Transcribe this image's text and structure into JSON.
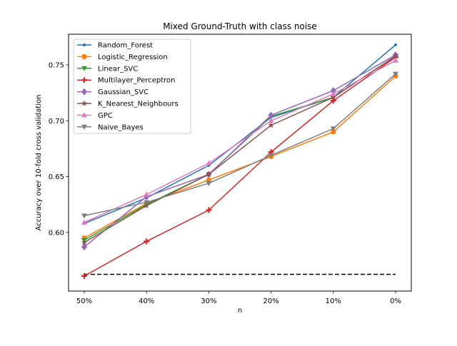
{
  "chart_data": {
    "type": "line",
    "title": "Mixed Ground-Truth with class noise",
    "xlabel": "n",
    "ylabel": "Accuracy over 10-fold cross validation",
    "categories": [
      "50%",
      "40%",
      "30%",
      "20%",
      "10%",
      "0%"
    ],
    "ylim": [
      0.5475,
      0.7775
    ],
    "yticks": [
      0.6,
      0.65,
      0.7,
      0.75
    ],
    "ytick_labels": [
      "0.60",
      "0.65",
      "0.70",
      "0.75"
    ],
    "legend_position": "upper-left",
    "grid": false,
    "baseline": {
      "value": 0.5625,
      "style": "dashed",
      "color": "#000000"
    },
    "series": [
      {
        "name": "Random_Forest",
        "color": "#1f77b4",
        "marker": "point",
        "values": [
          0.608,
          0.631,
          0.66,
          0.703,
          0.721,
          0.768
        ]
      },
      {
        "name": "Logistic_Regression",
        "color": "#ff7f0e",
        "marker": "circle",
        "values": [
          0.595,
          0.626,
          0.647,
          0.668,
          0.69,
          0.74
        ]
      },
      {
        "name": "Linear_SVC",
        "color": "#2ca02c",
        "marker": "triangle-down",
        "values": [
          0.593,
          0.625,
          0.652,
          0.704,
          0.721,
          0.758
        ]
      },
      {
        "name": "Multilayer_Perceptron",
        "color": "#d62728",
        "marker": "plus",
        "values": [
          0.561,
          0.592,
          0.62,
          0.672,
          0.718,
          0.757
        ]
      },
      {
        "name": "Gaussian_SVC",
        "color": "#9467bd",
        "marker": "diamond",
        "values": [
          0.587,
          0.632,
          0.652,
          0.705,
          0.727,
          0.759
        ]
      },
      {
        "name": "K_Nearest_Neighbours",
        "color": "#8c564b",
        "marker": "star",
        "values": [
          0.591,
          0.624,
          0.652,
          0.696,
          0.721,
          0.758
        ]
      },
      {
        "name": "GPC",
        "color": "#e377c2",
        "marker": "triangle-up",
        "values": [
          0.609,
          0.634,
          0.662,
          0.7,
          0.724,
          0.754
        ]
      },
      {
        "name": "Naive_Bayes",
        "color": "#7f7f7f",
        "marker": "triangle-down",
        "values": [
          0.615,
          0.627,
          0.644,
          0.669,
          0.693,
          0.742
        ]
      }
    ]
  }
}
